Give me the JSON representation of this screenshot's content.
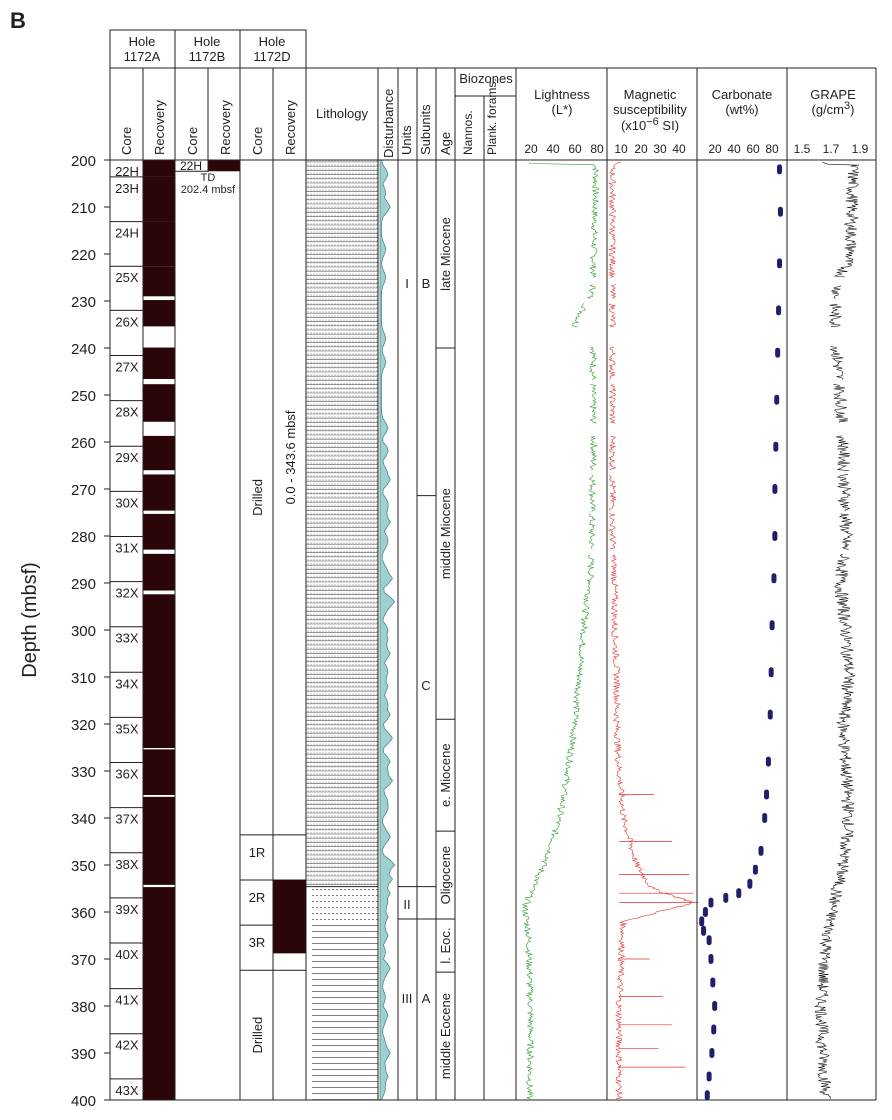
{
  "panel_letter": "B",
  "depth_axis": {
    "label": "Depth (mbsf)",
    "min": 200,
    "max": 400,
    "ticks": [
      "200",
      "210",
      "220",
      "230",
      "240",
      "250",
      "260",
      "270",
      "280",
      "290",
      "300",
      "310",
      "320",
      "330",
      "340",
      "350",
      "360",
      "370",
      "380",
      "390",
      "400"
    ]
  },
  "holes": {
    "h1172A": {
      "title": "Hole",
      "name": "1172A",
      "core_label": "Core",
      "recovery_label": "Recovery"
    },
    "h1172B": {
      "title": "Hole",
      "name": "1172B",
      "core_label": "Core",
      "recovery_label": "Recovery",
      "core": "22H",
      "td_label": "TD",
      "td_depth": "202.4 mbsf"
    },
    "h1172D": {
      "title": "Hole",
      "name": "1172D",
      "core_label": "Core",
      "recovery_label": "Recovery",
      "drilled_label": "Drilled",
      "drilled_range": "0.0 - 343.6 mbsf"
    }
  },
  "cores_1172A": [
    {
      "label": "22H",
      "top": 200.0,
      "bottom": 203.6,
      "rec_top": 200,
      "rec_bottom": 203.6
    },
    {
      "label": "23H",
      "top": 203.6,
      "bottom": 213.1,
      "rec_top": 203.6,
      "rec_bottom": 213.1
    },
    {
      "label": "24H",
      "top": 213.1,
      "bottom": 222.6,
      "rec_top": 213.1,
      "rec_bottom": 222.6
    },
    {
      "label": "25X",
      "top": 222.6,
      "bottom": 232.0,
      "rec_top": 222.6,
      "rec_bottom": 229.0
    },
    {
      "label": "26X",
      "top": 232.0,
      "bottom": 241.6,
      "rec_top": 229.8,
      "rec_bottom": 235.4
    },
    {
      "label": "27X",
      "top": 241.6,
      "bottom": 251.2,
      "rec_top": 239.9,
      "rec_bottom": 246.6
    },
    {
      "label": "28X",
      "top": 251.2,
      "bottom": 260.9,
      "rec_top": 247.7,
      "rec_bottom": 255.7
    },
    {
      "label": "29X",
      "top": 260.9,
      "bottom": 270.5,
      "rec_top": 258.7,
      "rec_bottom": 266.0
    },
    {
      "label": "30X",
      "top": 270.5,
      "bottom": 280.1,
      "rec_top": 266.9,
      "rec_bottom": 274.6
    },
    {
      "label": "31X",
      "top": 280.1,
      "bottom": 289.7,
      "rec_top": 275.3,
      "rec_bottom": 282.9
    },
    {
      "label": "32X",
      "top": 289.7,
      "bottom": 299.3,
      "rec_top": 283.8,
      "rec_bottom": 291.6
    },
    {
      "label": "33X",
      "top": 299.3,
      "bottom": 309.0,
      "rec_top": 292.4,
      "rec_bottom": 325.1
    },
    {
      "label": "34X",
      "top": 309.0,
      "bottom": 318.6,
      "rec_top": 309.0,
      "rec_bottom": 318.6
    },
    {
      "label": "35X",
      "top": 318.6,
      "bottom": 328.2,
      "rec_top": 318.6,
      "rec_bottom": 325.1
    },
    {
      "label": "36X",
      "top": 328.2,
      "bottom": 337.8,
      "rec_top": 325.4,
      "rec_bottom": 335.1
    },
    {
      "label": "37X",
      "top": 337.8,
      "bottom": 347.4,
      "rec_top": 335.5,
      "rec_bottom": 354.2
    },
    {
      "label": "38X",
      "top": 347.4,
      "bottom": 357.0,
      "rec_top": 347.4,
      "rec_bottom": 354.2
    },
    {
      "label": "39X",
      "top": 357.0,
      "bottom": 366.6,
      "rec_top": 354.7,
      "rec_bottom": 400
    },
    {
      "label": "40X",
      "top": 366.6,
      "bottom": 376.3,
      "rec_top": 366.6,
      "rec_bottom": 376.3
    },
    {
      "label": "41X",
      "top": 376.3,
      "bottom": 385.9,
      "rec_top": 376.3,
      "rec_bottom": 385.9
    },
    {
      "label": "42X",
      "top": 385.9,
      "bottom": 395.5,
      "rec_top": 385.9,
      "rec_bottom": 395.5
    },
    {
      "label": "43X",
      "top": 395.5,
      "bottom": 400.0,
      "rec_top": 395.5,
      "rec_bottom": 400
    }
  ],
  "cores_1172B": {
    "rec_top": 200,
    "rec_bottom": 202.4
  },
  "cores_1172D": [
    {
      "label": "Drilled",
      "top": 200,
      "bottom": 343.6,
      "kind": "drilled"
    },
    {
      "label": "1R",
      "top": 343.6,
      "bottom": 353.2,
      "kind": "core"
    },
    {
      "label": "2R",
      "top": 353.2,
      "bottom": 362.8,
      "kind": "core"
    },
    {
      "label": "3R",
      "top": 362.8,
      "bottom": 372.4,
      "kind": "core"
    },
    {
      "label": "Drilled",
      "top": 372.4,
      "bottom": 400,
      "kind": "drilled"
    }
  ],
  "recovery_1172D": {
    "rec_top": 353.2,
    "rec_bottom": 368.8
  },
  "lithology": {
    "label": "Lithology",
    "type1_top": 200,
    "type1_bottom": 354.6,
    "type2_top": 354.6,
    "type2_bottom": 400
  },
  "disturbance_label": "Disturbance",
  "units_label": "Units",
  "subunits_label": "Subunits",
  "units": [
    {
      "label": "I",
      "top": 200,
      "bottom": 354.6
    },
    {
      "label": "II",
      "top": 354.6,
      "bottom": 361.5
    },
    {
      "label": "III",
      "top": 361.5,
      "bottom": 400
    }
  ],
  "subunits": [
    {
      "label": "B",
      "top": 200,
      "bottom": 271.4
    },
    {
      "label": "C",
      "top": 271.4,
      "bottom": 354.6
    },
    {
      "label": "A",
      "top": 361.5,
      "bottom": 400
    }
  ],
  "age_label": "Age",
  "ages": [
    {
      "label": "late Miocene",
      "top": 200,
      "bottom": 240.0
    },
    {
      "label": "middle Miocene",
      "top": 240.0,
      "bottom": 319.0
    },
    {
      "label": "e. Miocene",
      "top": 319.0,
      "bottom": 342.8
    },
    {
      "label": "Oligocene",
      "top": 342.8,
      "bottom": 361.5
    },
    {
      "label": "l. Eoc.",
      "top": 361.5,
      "bottom": 372.8
    },
    {
      "label": "middle Eocene",
      "top": 372.8,
      "bottom": 400
    }
  ],
  "biozones": {
    "label": "Biozones",
    "nannos": "Nannos.",
    "plank": "Plank. forams."
  },
  "lightness": {
    "title": "Lightness",
    "unit": "(L*)",
    "ticks": [
      "20",
      "40",
      "60",
      "80"
    ],
    "color": "#2d9a2d"
  },
  "magsus": {
    "title": "Magnetic",
    "title2": "susceptibility",
    "unit_pre": "(x10",
    "unit_exp": "−6",
    "unit_post": " SI)",
    "ticks": [
      "10",
      "20",
      "30",
      "40"
    ],
    "color": "#e8312f"
  },
  "carbonate": {
    "title": "Carbonate",
    "unit": "(wt%)",
    "ticks": [
      "20",
      "40",
      "60",
      "80"
    ],
    "color": "#1f1f6b"
  },
  "grape": {
    "title": "GRAPE",
    "unit_pre": "(g/cm",
    "unit_exp": "3",
    "unit_post": ")",
    "ticks": [
      "1.5",
      "1.7",
      "1.9"
    ],
    "color": "#111111"
  },
  "chart_data": [
    {
      "type": "line",
      "title": "Lightness (L*)",
      "x_range": [
        10,
        90
      ],
      "y_range": [
        400,
        200
      ],
      "series": [
        {
          "name": "Lightness (L*)",
          "points": [
            [
              81,
              201
            ],
            [
              80,
              210
            ],
            [
              79,
              220
            ],
            [
              78,
              228
            ],
            [
              62,
              235
            ],
            [
              79,
              240
            ],
            [
              78,
              250
            ],
            [
              79,
              260
            ],
            [
              78,
              270
            ],
            [
              77,
              280
            ],
            [
              76,
              290
            ],
            [
              72,
              295
            ],
            [
              70,
              300
            ],
            [
              66,
              310
            ],
            [
              62,
              320
            ],
            [
              56,
              330
            ],
            [
              48,
              340
            ],
            [
              38,
              348
            ],
            [
              24,
              355
            ],
            [
              17,
              359
            ],
            [
              20,
              364
            ],
            [
              21,
              370
            ],
            [
              22,
              380
            ],
            [
              22,
              390
            ],
            [
              21,
              399
            ]
          ]
        }
      ]
    },
    {
      "type": "line",
      "title": "Magnetic susceptibility (x10−6 SI)",
      "x_range": [
        5,
        45
      ],
      "y_range": [
        400,
        200
      ],
      "series": [
        {
          "name": "Magnetic susceptibility",
          "points": [
            [
              7,
              201
            ],
            [
              7,
              220
            ],
            [
              7,
              240
            ],
            [
              7,
              260
            ],
            [
              7,
              280
            ],
            [
              8,
              290
            ],
            [
              8,
              300
            ],
            [
              9,
              310
            ],
            [
              9,
              320
            ],
            [
              10,
              330
            ],
            [
              12,
              340
            ],
            [
              15,
              345
            ],
            [
              18,
              350
            ],
            [
              25,
              355
            ],
            [
              44,
              358
            ],
            [
              12,
              362
            ],
            [
              11,
              370
            ],
            [
              10,
              380
            ],
            [
              10,
              390
            ],
            [
              10,
              399
            ]
          ]
        }
      ]
    },
    {
      "type": "scatter",
      "title": "Carbonate (wt%)",
      "x_range": [
        0,
        95
      ],
      "y_range": [
        400,
        200
      ],
      "series": [
        {
          "name": "Carbonate",
          "points": [
            [
              88,
              202
            ],
            [
              89,
              211
            ],
            [
              88,
              222
            ],
            [
              87,
              232
            ],
            [
              86,
              241
            ],
            [
              85,
              251
            ],
            [
              84,
              261
            ],
            [
              83,
              270
            ],
            [
              83,
              280
            ],
            [
              82,
              289
            ],
            [
              80,
              299
            ],
            [
              79,
              309
            ],
            [
              78,
              318
            ],
            [
              76,
              328
            ],
            [
              74,
              335
            ],
            [
              72,
              340
            ],
            [
              68,
              347
            ],
            [
              62,
              351
            ],
            [
              56,
              354
            ],
            [
              44,
              356
            ],
            [
              30,
              357
            ],
            [
              14,
              358
            ],
            [
              8,
              360
            ],
            [
              4,
              362
            ],
            [
              6,
              364
            ],
            [
              12,
              366
            ],
            [
              14,
              370
            ],
            [
              16,
              375
            ],
            [
              18,
              380
            ],
            [
              17,
              385
            ],
            [
              15,
              390
            ],
            [
              12,
              395
            ],
            [
              10,
              399
            ]
          ]
        }
      ]
    },
    {
      "type": "line",
      "title": "GRAPE (g/cm3)",
      "x_range": [
        1.4,
        2.0
      ],
      "y_range": [
        400,
        200
      ],
      "series": [
        {
          "name": "GRAPE",
          "points": [
            [
              1.85,
              201
            ],
            [
              1.84,
              210
            ],
            [
              1.83,
              220
            ],
            [
              1.75,
              226
            ],
            [
              1.72,
              232
            ],
            [
              1.74,
              242
            ],
            [
              1.76,
              250
            ],
            [
              1.78,
              260
            ],
            [
              1.79,
              270
            ],
            [
              1.8,
              280
            ],
            [
              1.76,
              290
            ],
            [
              1.8,
              300
            ],
            [
              1.82,
              310
            ],
            [
              1.78,
              320
            ],
            [
              1.8,
              330
            ],
            [
              1.82,
              340
            ],
            [
              1.78,
              350
            ],
            [
              1.7,
              360
            ],
            [
              1.65,
              370
            ],
            [
              1.63,
              380
            ],
            [
              1.64,
              390
            ],
            [
              1.66,
              399
            ]
          ]
        }
      ]
    }
  ]
}
